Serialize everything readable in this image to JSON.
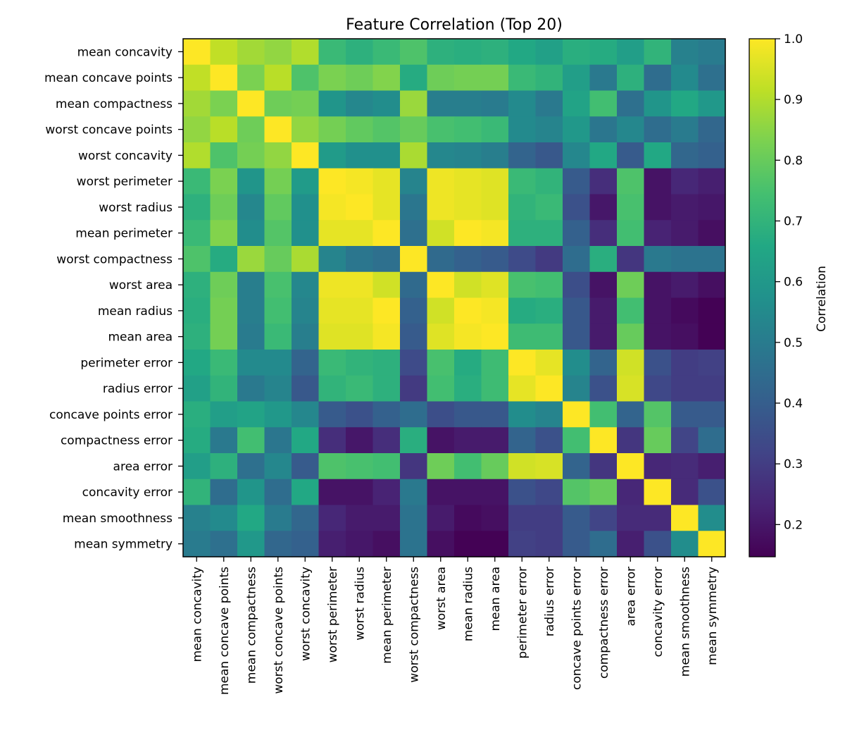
{
  "chart_data": {
    "type": "heatmap",
    "title": "Feature Correlation (Top 20)",
    "xlabel": "",
    "ylabel": "",
    "features": [
      "mean concavity",
      "mean concave points",
      "mean compactness",
      "worst concave points",
      "worst concavity",
      "worst perimeter",
      "worst radius",
      "mean perimeter",
      "worst compactness",
      "worst area",
      "mean radius",
      "mean area",
      "perimeter error",
      "radius error",
      "concave points error",
      "compactness error",
      "area error",
      "concavity error",
      "mean smoothness",
      "mean symmetry"
    ],
    "matrix": [
      [
        1.0,
        0.92,
        0.88,
        0.86,
        0.9,
        0.72,
        0.69,
        0.72,
        0.76,
        0.69,
        0.68,
        0.69,
        0.66,
        0.63,
        0.68,
        0.67,
        0.62,
        0.7,
        0.52,
        0.5
      ],
      [
        0.92,
        1.0,
        0.83,
        0.91,
        0.76,
        0.83,
        0.81,
        0.84,
        0.67,
        0.81,
        0.82,
        0.82,
        0.72,
        0.7,
        0.62,
        0.49,
        0.69,
        0.45,
        0.55,
        0.46
      ],
      [
        0.88,
        0.83,
        1.0,
        0.81,
        0.82,
        0.59,
        0.54,
        0.56,
        0.87,
        0.51,
        0.51,
        0.5,
        0.55,
        0.49,
        0.64,
        0.74,
        0.46,
        0.59,
        0.66,
        0.6
      ],
      [
        0.86,
        0.91,
        0.81,
        1.0,
        0.86,
        0.82,
        0.79,
        0.77,
        0.8,
        0.75,
        0.74,
        0.72,
        0.55,
        0.53,
        0.6,
        0.48,
        0.54,
        0.45,
        0.5,
        0.43
      ],
      [
        0.9,
        0.76,
        0.82,
        0.86,
        1.0,
        0.61,
        0.57,
        0.57,
        0.89,
        0.54,
        0.53,
        0.51,
        0.42,
        0.38,
        0.54,
        0.66,
        0.39,
        0.66,
        0.43,
        0.41
      ],
      [
        0.72,
        0.83,
        0.59,
        0.82,
        0.61,
        1.0,
        0.99,
        0.97,
        0.53,
        0.98,
        0.97,
        0.96,
        0.72,
        0.7,
        0.39,
        0.26,
        0.76,
        0.19,
        0.24,
        0.22
      ],
      [
        0.69,
        0.81,
        0.54,
        0.79,
        0.57,
        0.99,
        1.0,
        0.97,
        0.48,
        0.98,
        0.97,
        0.96,
        0.7,
        0.72,
        0.36,
        0.2,
        0.75,
        0.19,
        0.21,
        0.2
      ],
      [
        0.72,
        0.84,
        0.56,
        0.77,
        0.57,
        0.97,
        0.97,
        1.0,
        0.46,
        0.94,
        1.0,
        0.99,
        0.69,
        0.69,
        0.41,
        0.26,
        0.74,
        0.23,
        0.21,
        0.18
      ],
      [
        0.76,
        0.67,
        0.87,
        0.8,
        0.89,
        0.53,
        0.48,
        0.46,
        1.0,
        0.44,
        0.41,
        0.39,
        0.34,
        0.29,
        0.45,
        0.68,
        0.28,
        0.49,
        0.47,
        0.47
      ],
      [
        0.69,
        0.81,
        0.51,
        0.75,
        0.54,
        0.98,
        0.98,
        0.94,
        0.44,
        1.0,
        0.94,
        0.96,
        0.75,
        0.74,
        0.35,
        0.19,
        0.81,
        0.19,
        0.21,
        0.18
      ],
      [
        0.68,
        0.82,
        0.51,
        0.74,
        0.53,
        0.97,
        0.97,
        1.0,
        0.41,
        0.94,
        1.0,
        0.99,
        0.67,
        0.68,
        0.38,
        0.21,
        0.74,
        0.19,
        0.17,
        0.15
      ],
      [
        0.69,
        0.82,
        0.5,
        0.72,
        0.51,
        0.96,
        0.96,
        0.99,
        0.39,
        0.96,
        0.99,
        1.0,
        0.73,
        0.73,
        0.38,
        0.21,
        0.8,
        0.19,
        0.18,
        0.15
      ],
      [
        0.66,
        0.72,
        0.55,
        0.55,
        0.42,
        0.72,
        0.7,
        0.69,
        0.34,
        0.75,
        0.67,
        0.73,
        1.0,
        0.97,
        0.56,
        0.42,
        0.94,
        0.36,
        0.3,
        0.31
      ],
      [
        0.63,
        0.7,
        0.49,
        0.53,
        0.38,
        0.7,
        0.72,
        0.69,
        0.29,
        0.74,
        0.68,
        0.73,
        0.97,
        1.0,
        0.53,
        0.36,
        0.95,
        0.33,
        0.3,
        0.3
      ],
      [
        0.68,
        0.62,
        0.64,
        0.6,
        0.54,
        0.39,
        0.36,
        0.41,
        0.45,
        0.35,
        0.38,
        0.38,
        0.56,
        0.53,
        1.0,
        0.74,
        0.42,
        0.77,
        0.39,
        0.39
      ],
      [
        0.67,
        0.49,
        0.74,
        0.48,
        0.66,
        0.26,
        0.2,
        0.26,
        0.68,
        0.19,
        0.21,
        0.21,
        0.42,
        0.36,
        0.74,
        1.0,
        0.28,
        0.8,
        0.32,
        0.45
      ],
      [
        0.62,
        0.69,
        0.46,
        0.54,
        0.39,
        0.76,
        0.75,
        0.74,
        0.28,
        0.81,
        0.74,
        0.8,
        0.94,
        0.95,
        0.42,
        0.28,
        1.0,
        0.24,
        0.25,
        0.22
      ],
      [
        0.7,
        0.45,
        0.59,
        0.45,
        0.66,
        0.19,
        0.19,
        0.23,
        0.49,
        0.19,
        0.19,
        0.19,
        0.36,
        0.33,
        0.77,
        0.8,
        0.24,
        1.0,
        0.25,
        0.36
      ],
      [
        0.52,
        0.55,
        0.66,
        0.5,
        0.43,
        0.24,
        0.21,
        0.21,
        0.47,
        0.21,
        0.17,
        0.18,
        0.3,
        0.3,
        0.39,
        0.32,
        0.25,
        0.25,
        1.0,
        0.56
      ],
      [
        0.5,
        0.46,
        0.6,
        0.43,
        0.41,
        0.22,
        0.2,
        0.18,
        0.47,
        0.18,
        0.15,
        0.15,
        0.31,
        0.3,
        0.39,
        0.45,
        0.22,
        0.36,
        0.56,
        1.0
      ]
    ],
    "colorbar": {
      "label": "Correlation",
      "min": 0.147,
      "max": 1.0,
      "ticks": [
        "0.2",
        "0.3",
        "0.4",
        "0.5",
        "0.6",
        "0.7",
        "0.8",
        "0.9",
        "1.0"
      ],
      "colormap": "viridis"
    },
    "colors": {
      "viridis": [
        "#440154",
        "#482475",
        "#414487",
        "#355f8d",
        "#2a788e",
        "#21918c",
        "#22a884",
        "#44bf70",
        "#7ad151",
        "#bddf26",
        "#fde725"
      ],
      "frame": "#000000"
    },
    "grid": false
  }
}
